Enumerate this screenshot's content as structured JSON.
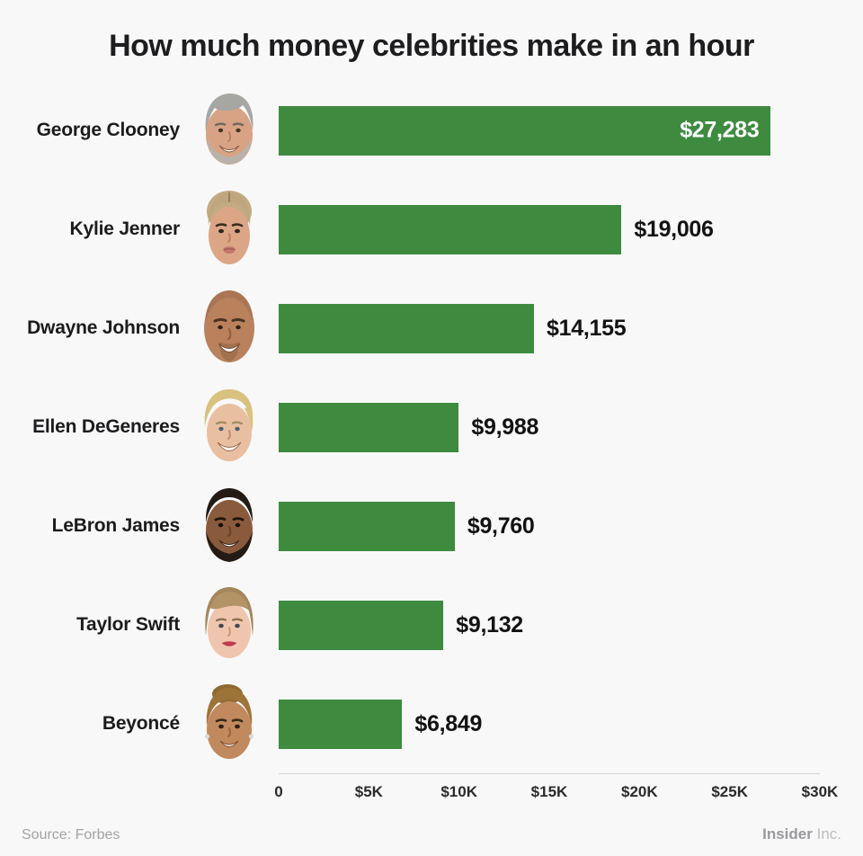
{
  "title": "How much money celebrities make in an hour",
  "chart_data": {
    "type": "bar",
    "orientation": "horizontal",
    "title": "How much money celebrities make in an hour",
    "xlabel": "",
    "ylabel": "",
    "xlim": [
      0,
      30000
    ],
    "xmax": 30000,
    "bar_color": "#3e8b40",
    "grid": false,
    "x_ticks": [
      "0",
      "$5K",
      "$10K",
      "$15K",
      "$20K",
      "$25K",
      "$30K"
    ],
    "rows": [
      {
        "name": "George Clooney",
        "value": 27283,
        "label": "$27,283",
        "label_inside": true,
        "avatar": "george-clooney"
      },
      {
        "name": "Kylie Jenner",
        "value": 19006,
        "label": "$19,006",
        "label_inside": false,
        "avatar": "kylie-jenner"
      },
      {
        "name": "Dwayne Johnson",
        "value": 14155,
        "label": "$14,155",
        "label_inside": false,
        "avatar": "dwayne-johnson"
      },
      {
        "name": "Ellen DeGeneres",
        "value": 9988,
        "label": "$9,988",
        "label_inside": false,
        "avatar": "ellen-degeneres"
      },
      {
        "name": "LeBron James",
        "value": 9760,
        "label": "$9,760",
        "label_inside": false,
        "avatar": "lebron-james"
      },
      {
        "name": "Taylor Swift",
        "value": 9132,
        "label": "$9,132",
        "label_inside": false,
        "avatar": "taylor-swift"
      },
      {
        "name": "Beyoncé",
        "value": 6849,
        "label": "$6,849",
        "label_inside": false,
        "avatar": "beyonce"
      }
    ]
  },
  "footer": {
    "source": "Source: Forbes",
    "brand_bold": "Insider",
    "brand_light": "Inc."
  }
}
